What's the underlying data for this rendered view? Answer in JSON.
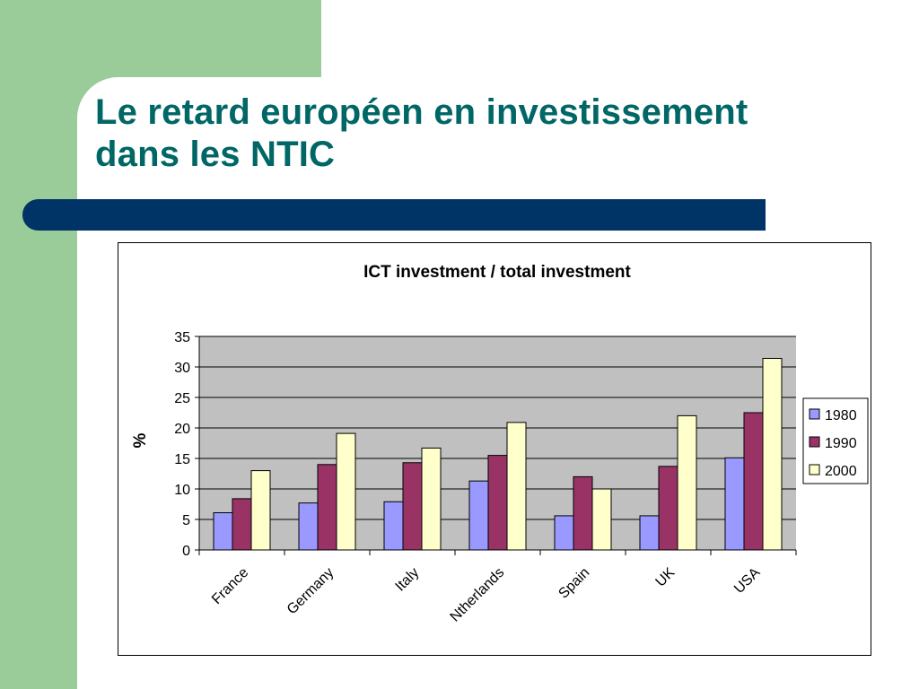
{
  "slide": {
    "title_line1": "Le retard européen en investissement",
    "title_line2": "dans les NTIC"
  },
  "colors": {
    "green_block": "#99cc99",
    "title_text": "#006666",
    "band": "#003366",
    "plot_area": "#c0c0c0"
  },
  "chart_data": {
    "type": "bar",
    "title": "ICT investment / total investment",
    "ylabel": "%",
    "xlabel": "",
    "ylim": [
      0,
      35
    ],
    "yticks": [
      0,
      5,
      10,
      15,
      20,
      25,
      30,
      35
    ],
    "grid": true,
    "legend_position": "right",
    "categories": [
      "France",
      "Germany",
      "Italy",
      "Ntherlands",
      "Spain",
      "UK",
      "USA"
    ],
    "series": [
      {
        "name": "1980",
        "color": "#9999ff",
        "values": [
          6.1,
          7.7,
          7.9,
          11.3,
          5.6,
          5.6,
          15.1
        ]
      },
      {
        "name": "1990",
        "color": "#993366",
        "values": [
          8.4,
          14.0,
          14.3,
          15.5,
          12.0,
          13.7,
          22.5
        ]
      },
      {
        "name": "2000",
        "color": "#ffffcc",
        "values": [
          13.0,
          19.1,
          16.7,
          20.9,
          10.0,
          22.0,
          31.4
        ]
      }
    ]
  }
}
